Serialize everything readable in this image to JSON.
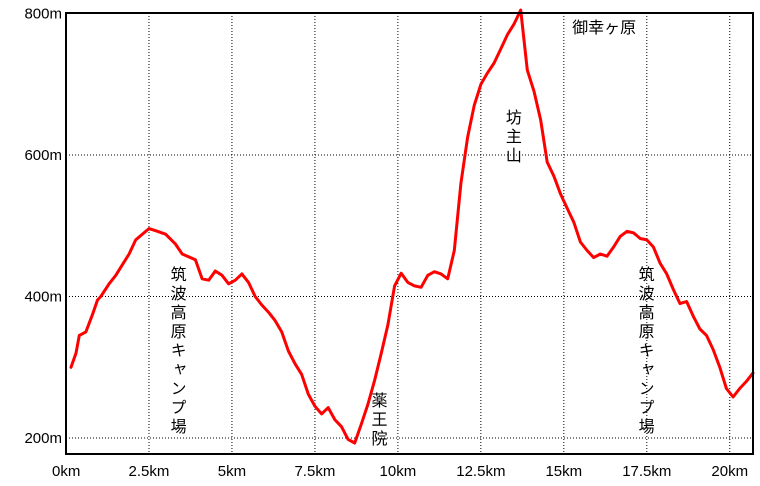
{
  "chart_data": {
    "type": "line",
    "title": "",
    "xlabel": "",
    "ylabel": "",
    "xlim": [
      0,
      20.7
    ],
    "ylim": [
      180,
      800
    ],
    "grid": true,
    "line_color": "#ff0000",
    "x_ticks": [
      {
        "value": 0,
        "label": "0km"
      },
      {
        "value": 2.5,
        "label": "2.5km"
      },
      {
        "value": 5,
        "label": "5km"
      },
      {
        "value": 7.5,
        "label": "7.5km"
      },
      {
        "value": 10,
        "label": "10km"
      },
      {
        "value": 12.5,
        "label": "12.5km"
      },
      {
        "value": 15,
        "label": "15km"
      },
      {
        "value": 17.5,
        "label": "17.5km"
      },
      {
        "value": 20,
        "label": "20km"
      }
    ],
    "y_ticks": [
      {
        "value": 200,
        "label": "200m"
      },
      {
        "value": 400,
        "label": "400m"
      },
      {
        "value": 600,
        "label": "600m"
      },
      {
        "value": 800,
        "label": "800m"
      }
    ],
    "series": [
      {
        "x": [
          0.15,
          0.3,
          0.4,
          0.6,
          0.8,
          0.95,
          1.05,
          1.3,
          1.5,
          1.7,
          1.9,
          2.1,
          2.3,
          2.5,
          2.7,
          3.0,
          3.3,
          3.5,
          3.7,
          3.9,
          4.1,
          4.3,
          4.5,
          4.7,
          4.9,
          5.1,
          5.3,
          5.5,
          5.7,
          5.9,
          6.1,
          6.3,
          6.5,
          6.7,
          6.9,
          7.1,
          7.3,
          7.5,
          7.7,
          7.9,
          8.1,
          8.3,
          8.5,
          8.7,
          8.9,
          9.1,
          9.3,
          9.5,
          9.7,
          9.9,
          10.1,
          10.3,
          10.5,
          10.7,
          10.9,
          11.1,
          11.3,
          11.5,
          11.7,
          11.9,
          12.1,
          12.3,
          12.5,
          12.7,
          12.9,
          13.1,
          13.3,
          13.5,
          13.7,
          13.9,
          14.1,
          14.3,
          14.5,
          14.7,
          14.9,
          15.1,
          15.3,
          15.5,
          15.7,
          15.9,
          16.1,
          16.3,
          16.5,
          16.7,
          16.9,
          17.1,
          17.3,
          17.5,
          17.7,
          17.9,
          18.1,
          18.3,
          18.5,
          18.7,
          18.9,
          19.1,
          19.3,
          19.5,
          19.7,
          19.9,
          20.1,
          20.3,
          20.5,
          20.7
        ],
        "y": [
          300,
          320,
          345,
          350,
          375,
          395,
          400,
          418,
          430,
          445,
          460,
          480,
          488,
          496,
          493,
          488,
          474,
          460,
          456,
          452,
          425,
          423,
          436,
          430,
          418,
          423,
          432,
          420,
          400,
          388,
          378,
          366,
          350,
          323,
          305,
          290,
          262,
          245,
          234,
          243,
          226,
          216,
          198,
          193,
          220,
          248,
          282,
          320,
          360,
          415,
          433,
          420,
          415,
          413,
          430,
          435,
          432,
          425,
          465,
          560,
          625,
          670,
          700,
          716,
          730,
          750,
          770,
          785,
          805,
          720,
          690,
          650,
          590,
          570,
          545,
          525,
          505,
          477,
          465,
          455,
          460,
          457,
          470,
          485,
          492,
          490,
          482,
          480,
          470,
          447,
          432,
          410,
          390,
          393,
          372,
          354,
          345,
          325,
          300,
          270,
          258,
          270,
          280,
          292
        ]
      }
    ],
    "annotations": [
      {
        "text": "筑波高原キャンプ場",
        "orientation": "vertical",
        "x": 3.35
      },
      {
        "text": "薬王院",
        "orientation": "vertical",
        "x": 9.4
      },
      {
        "text": "坊主山",
        "orientation": "vertical",
        "x": 13.45
      },
      {
        "text": "御幸ヶ原",
        "orientation": "horizontal",
        "x": 15.25
      },
      {
        "text": "筑波高原キャンプ場",
        "orientation": "vertical",
        "x": 17.45
      }
    ]
  }
}
